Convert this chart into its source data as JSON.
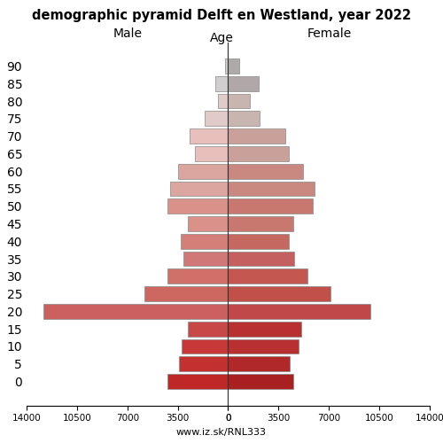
{
  "title": "demographic pyramid Delft en Westland, year 2022",
  "label_male": "Male",
  "label_female": "Female",
  "label_age": "Age",
  "footer": "www.iz.sk/RNL333",
  "age_labels": [
    "90",
    "85",
    "80",
    "75",
    "70",
    "65",
    "60",
    "55",
    "50",
    "45",
    "40",
    "35",
    "30",
    "25",
    "20",
    "15",
    "10",
    "5",
    "0"
  ],
  "male_values": [
    200,
    900,
    700,
    1600,
    2700,
    2300,
    3500,
    4000,
    4200,
    2800,
    3300,
    3100,
    4200,
    5800,
    12800,
    2800,
    3200,
    3400,
    4200
  ],
  "female_values": [
    800,
    2100,
    1500,
    2200,
    4000,
    4200,
    5200,
    6000,
    5900,
    4500,
    4200,
    4600,
    5500,
    7100,
    9900,
    5100,
    4900,
    4300,
    4500
  ],
  "bar_colors_male": [
    "#d0cece",
    "#d0cece",
    "#e0cbc8",
    "#e0cbc8",
    "#e8bfba",
    "#e8bfba",
    "#dba5a0",
    "#dba5a0",
    "#d9918a",
    "#d9918a",
    "#d48078",
    "#d07878",
    "#d07068",
    "#cc6860",
    "#cc6060",
    "#c84848",
    "#c83838",
    "#c43030",
    "#c02828"
  ],
  "bar_colors_female": [
    "#aeaaaa",
    "#b0a8a8",
    "#c9b5b0",
    "#c9b5b0",
    "#c9a09a",
    "#c9a09a",
    "#c98880",
    "#c98880",
    "#c97870",
    "#c97870",
    "#c46860",
    "#c46060",
    "#c45850",
    "#c05048",
    "#c04848",
    "#b83030",
    "#b83030",
    "#b02828",
    "#a82020"
  ],
  "xlim": 14000,
  "xticks_left": [
    14000,
    10500,
    7000,
    3500,
    0
  ],
  "xticks_right": [
    0,
    3500,
    7000,
    10500,
    14000
  ],
  "background_color": "#ffffff",
  "bar_height": 0.85,
  "edgecolor": "#888888",
  "edgewidth": 0.5
}
